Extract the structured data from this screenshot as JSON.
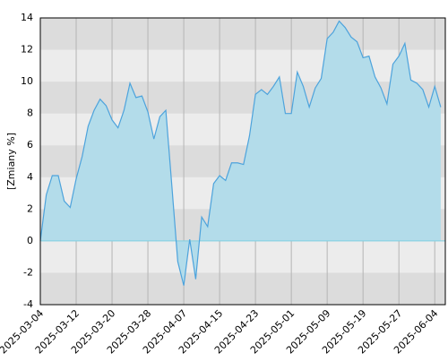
{
  "chart_data": {
    "type": "area",
    "y_label": "[Zmiany %]",
    "categories": [
      "2025-03-04",
      null,
      null,
      null,
      null,
      null,
      "2025-03-12",
      null,
      null,
      null,
      null,
      null,
      "2025-03-20",
      null,
      null,
      null,
      null,
      null,
      "2025-03-28",
      null,
      null,
      null,
      null,
      null,
      "2025-04-07",
      null,
      null,
      null,
      null,
      null,
      "2025-04-15",
      null,
      null,
      null,
      null,
      null,
      "2025-04-23",
      null,
      null,
      null,
      null,
      null,
      "2025-05-01",
      null,
      null,
      null,
      null,
      null,
      "2025-05-09",
      null,
      null,
      null,
      null,
      null,
      "2025-05-19",
      null,
      null,
      null,
      null,
      null,
      "2025-05-27",
      null,
      null,
      null,
      null,
      null,
      "2025-06-04",
      null
    ],
    "values": [
      0,
      2.9,
      4.1,
      4.1,
      2.5,
      2.1,
      3.9,
      5.3,
      7.2,
      8.2,
      8.9,
      8.5,
      7.6,
      7.1,
      8.2,
      9.9,
      9.0,
      9.1,
      8.1,
      6.4,
      7.8,
      8.2,
      3.5,
      -1.3,
      -2.8,
      0.1,
      -2.4,
      1.5,
      0.9,
      3.6,
      4.1,
      3.8,
      4.9,
      4.9,
      4.8,
      6.6,
      9.2,
      9.5,
      9.2,
      9.7,
      10.3,
      8.0,
      8.0,
      10.6,
      9.7,
      8.4,
      9.6,
      10.2,
      12.7,
      13.1,
      13.8,
      13.4,
      12.8,
      12.5,
      11.5,
      11.6,
      10.3,
      9.6,
      8.6,
      11.1,
      11.6,
      12.4,
      10.1,
      9.9,
      9.5,
      8.4,
      9.7,
      8.4
    ],
    "color": "#4da3dc",
    "fill": "#b3dcea",
    "ylim": [
      -4,
      14
    ],
    "yticks": [
      -4,
      -2,
      0,
      2,
      4,
      6,
      8,
      10,
      12,
      14
    ],
    "grid": true
  }
}
